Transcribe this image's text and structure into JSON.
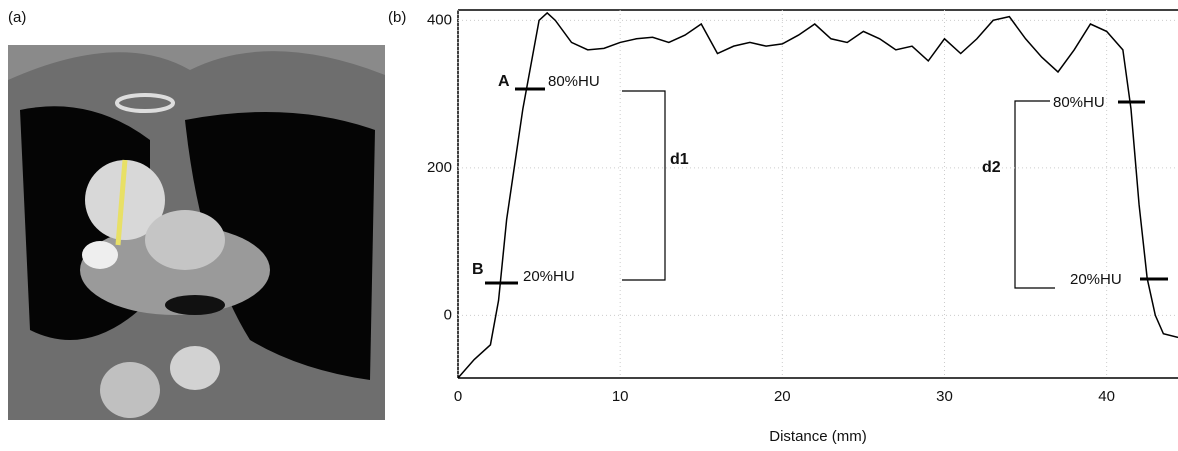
{
  "figure": {
    "panel_labels": [
      "(a)",
      "(b)"
    ]
  },
  "chart_data": {
    "type": "line",
    "x_label": "Distance (mm)",
    "x": [
      0,
      1,
      2,
      2.5,
      3,
      4,
      4.5,
      5,
      5.5,
      6,
      7,
      8,
      9,
      10,
      11,
      12,
      13,
      14,
      15,
      16,
      17,
      18,
      19,
      20,
      21,
      22,
      23,
      24,
      25,
      26,
      27,
      28,
      29,
      30,
      31,
      32,
      33,
      34,
      35,
      36,
      37,
      38,
      39,
      40,
      41,
      41.5,
      42,
      42.5,
      43,
      43.5,
      44.4
    ],
    "series": [
      {
        "color": "#000000",
        "values": [
          -85,
          -60,
          -40,
          20,
          130,
          280,
          340,
          400,
          410,
          400,
          370,
          360,
          362,
          370,
          375,
          377,
          370,
          380,
          395,
          355,
          365,
          370,
          365,
          368,
          380,
          395,
          375,
          370,
          385,
          375,
          360,
          365,
          345,
          375,
          355,
          375,
          400,
          405,
          375,
          350,
          330,
          360,
          395,
          385,
          360,
          280,
          150,
          50,
          0,
          -25,
          -30
        ]
      }
    ],
    "xlim": [
      0,
      44.4
    ],
    "ylim": [
      -85,
      414
    ],
    "xticks": [
      0,
      10,
      20,
      30,
      40
    ],
    "yticks": [
      0,
      200,
      400
    ],
    "grid": true,
    "annotations": [
      "A",
      "80%HU",
      "B",
      "20%HU",
      "d1",
      "d2",
      "80%HU",
      "20%HU"
    ]
  }
}
